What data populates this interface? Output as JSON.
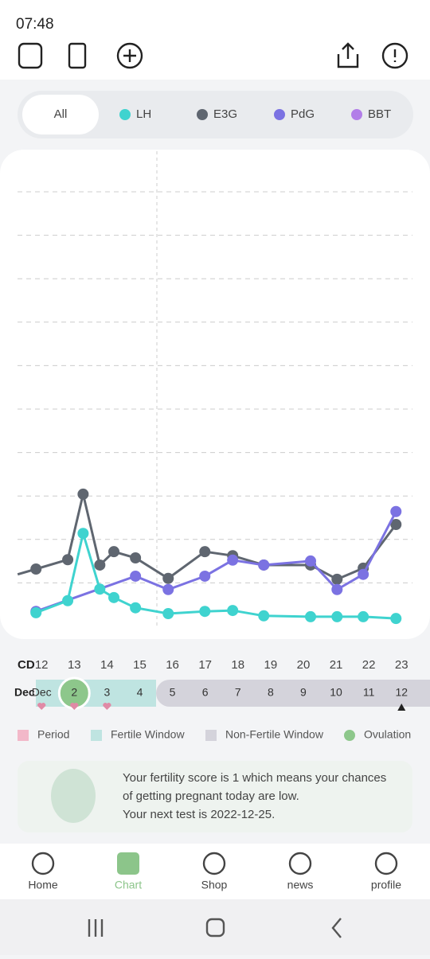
{
  "status_bar": {
    "time": "07:48"
  },
  "filters": [
    "All",
    "LH",
    "E3G",
    "PdG",
    "BBT"
  ],
  "chart_data": {
    "type": "line",
    "x_label": "CD",
    "xlim": [
      10.73,
      23.87
    ],
    "ylim": [
      0,
      100
    ],
    "grid": true,
    "xticks": [
      12,
      13,
      14,
      15,
      16,
      17,
      18,
      19,
      20,
      21,
      22,
      23
    ],
    "series": [
      {
        "name": "LH",
        "color": "#3fd3cf",
        "x": [
          11.83,
          12.8,
          13.27,
          13.78,
          14.21,
          14.87,
          15.87,
          16.99,
          17.84,
          18.79,
          20.22,
          21.03,
          21.83,
          22.83
        ],
        "values": [
          2.7,
          5.4,
          20.5,
          8.0,
          6.1,
          3.8,
          2.5,
          3.0,
          3.2,
          2.0,
          1.8,
          1.8,
          1.8,
          1.4
        ]
      },
      {
        "name": "E3G",
        "color": "#5f6670",
        "x": [
          11.27,
          11.83,
          12.8,
          13.27,
          13.78,
          14.21,
          14.87,
          15.87,
          16.99,
          17.84,
          18.79,
          20.22,
          21.03,
          21.83,
          22.83
        ],
        "values": [
          11.3,
          12.5,
          14.6,
          29.3,
          13.4,
          16.4,
          15.0,
          10.4,
          16.4,
          15.5,
          13.4,
          13.4,
          10.2,
          12.7,
          22.5
        ]
      },
      {
        "name": "PdG",
        "color": "#7b72e2",
        "x": [
          11.83,
          14.87,
          15.87,
          16.99,
          17.84,
          18.79,
          20.22,
          21.03,
          21.83,
          22.83
        ],
        "values": [
          3.0,
          10.9,
          7.9,
          10.9,
          14.5,
          13.4,
          14.3,
          7.9,
          11.3,
          25.4
        ]
      },
      {
        "name": "BBT",
        "color": "#b27ee8",
        "x": [],
        "values": []
      }
    ]
  },
  "cycle": {
    "month_label": "Dec",
    "dates": [
      "Dec",
      "2",
      "3",
      "4",
      "5",
      "6",
      "7",
      "8",
      "9",
      "10",
      "11",
      "12"
    ]
  },
  "legend": [
    "Period",
    "Fertile Window",
    "Non-Fertile Window",
    "Ovulation"
  ],
  "message": [
    "Your fertility score is 1 which means your chances",
    "of getting pregnant today are low.",
    "Your next test is 2022-12-25."
  ],
  "nav": [
    "Home",
    "Chart",
    "Shop",
    "news",
    "profile"
  ]
}
